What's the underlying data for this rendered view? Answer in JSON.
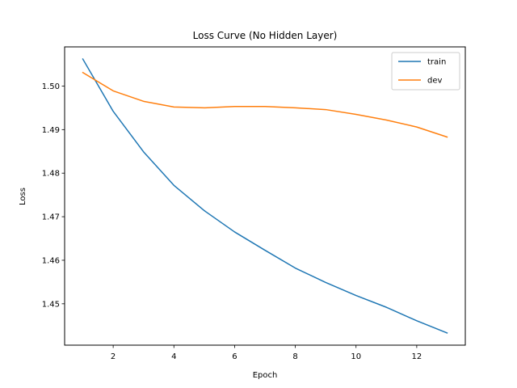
{
  "chart_data": {
    "type": "line",
    "title": "Loss Curve (No Hidden Layer)",
    "xlabel": "Epoch",
    "ylabel": "Loss",
    "xlim": [
      0.4,
      13.6
    ],
    "ylim": [
      1.4405,
      1.509
    ],
    "xticks": [
      2,
      4,
      6,
      8,
      10,
      12
    ],
    "yticks": [
      1.45,
      1.46,
      1.47,
      1.48,
      1.49,
      1.5
    ],
    "ytick_labels": [
      "1.45",
      "1.46",
      "1.47",
      "1.48",
      "1.49",
      "1.50"
    ],
    "grid": false,
    "legend_position": "top-right",
    "x": [
      1,
      2,
      3,
      4,
      5,
      6,
      7,
      8,
      9,
      10,
      11,
      12,
      13
    ],
    "series": [
      {
        "name": "train",
        "color": "#1f77b4",
        "values": [
          1.5062,
          1.4942,
          1.4849,
          1.4772,
          1.4714,
          1.4665,
          1.4623,
          1.4582,
          1.4549,
          1.4519,
          1.4492,
          1.4461,
          1.4433
        ]
      },
      {
        "name": "dev",
        "color": "#ff7f0e",
        "values": [
          1.5031,
          1.4989,
          1.4965,
          1.4952,
          1.495,
          1.4953,
          1.4953,
          1.495,
          1.4946,
          1.4935,
          1.4922,
          1.4906,
          1.4883
        ]
      }
    ]
  }
}
